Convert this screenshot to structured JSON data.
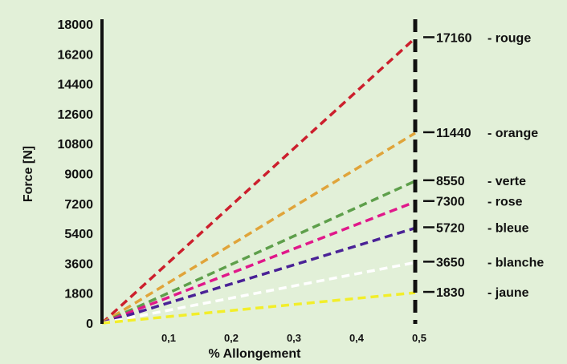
{
  "chart_data": {
    "type": "line",
    "title": "",
    "xlabel": "% Allongement",
    "ylabel": "Force  [N]",
    "xlim": [
      0,
      0.5
    ],
    "ylim": [
      0,
      18000
    ],
    "x_ticks": [
      "0,1",
      "0,2",
      "0,3",
      "0,4",
      "0,5"
    ],
    "y_ticks": [
      "0",
      "1800",
      "3600",
      "5400",
      "7200",
      "9000",
      "10800",
      "12600",
      "14400",
      "16200",
      "18000"
    ],
    "grid": false,
    "x": [
      0,
      0.5
    ],
    "series": [
      {
        "name": "rouge",
        "end_label": "17160",
        "suffix": "- rouge",
        "values": [
          0,
          17160
        ],
        "color": "#cc1f2d"
      },
      {
        "name": "orange",
        "end_label": "11440",
        "suffix": "- orange",
        "values": [
          0,
          11440
        ],
        "color": "#e0a43a"
      },
      {
        "name": "verte",
        "end_label": "8550",
        "suffix": "- verte",
        "values": [
          0,
          8550
        ],
        "color": "#5e9f4b"
      },
      {
        "name": "rose",
        "end_label": "7300",
        "suffix": "- rose",
        "values": [
          0,
          7300
        ],
        "color": "#e0188a"
      },
      {
        "name": "bleue",
        "end_label": "5720",
        "suffix": "- bleue",
        "values": [
          0,
          5720
        ],
        "color": "#4a2296"
      },
      {
        "name": "blanche",
        "end_label": "3650",
        "suffix": "- blanche",
        "values": [
          0,
          3650
        ],
        "color": "#ffffff"
      },
      {
        "name": "jaune",
        "end_label": "1830",
        "suffix": "- jaune",
        "values": [
          0,
          1830
        ],
        "color": "#f2ee2a"
      }
    ]
  }
}
